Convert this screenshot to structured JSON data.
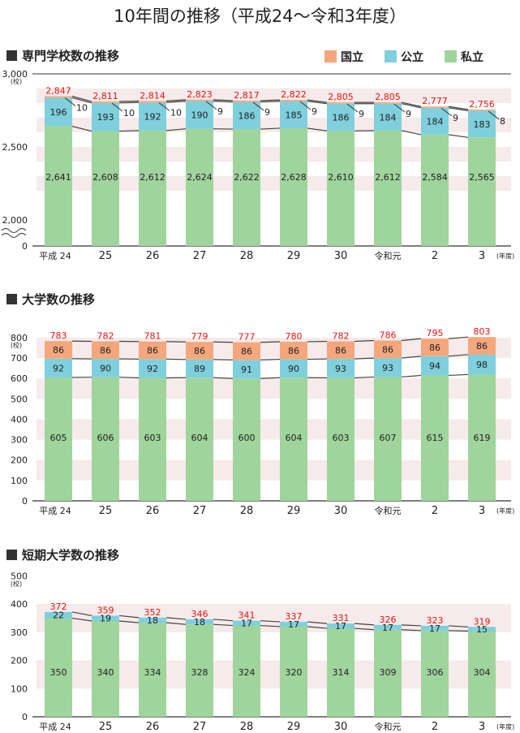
{
  "title": "10年間の推移（平成24〜令和3年度）",
  "legend": [
    {
      "label": "国立",
      "color": "#f4a77c"
    },
    {
      "label": "公立",
      "color": "#7fcfdd"
    },
    {
      "label": "私立",
      "color": "#9fd49c"
    }
  ],
  "colors": {
    "total_label": "#e8140f",
    "stripe": "#f6eaea"
  },
  "chart_data": [
    {
      "type": "bar",
      "stacked": true,
      "title": "専門学校数の推移",
      "unit": "(校)",
      "year_unit": "(年度)",
      "categories": [
        "平成 24",
        "25",
        "26",
        "27",
        "28",
        "29",
        "30",
        "令和元",
        "2",
        "3"
      ],
      "yticks": [
        "0",
        "2,000",
        "2,500",
        "3,000"
      ],
      "axis_break": "0〜2,000",
      "ylim": [
        0,
        3000
      ],
      "series": [
        {
          "name": "私立",
          "values": [
            2641,
            2608,
            2612,
            2624,
            2622,
            2628,
            2610,
            2612,
            2584,
            2565
          ],
          "labels": [
            "2,641",
            "2,608",
            "2,612",
            "2,624",
            "2,622",
            "2,628",
            "2,610",
            "2,612",
            "2,584",
            "2,565"
          ]
        },
        {
          "name": "公立",
          "values": [
            196,
            193,
            192,
            190,
            186,
            185,
            186,
            184,
            184,
            183
          ],
          "labels": [
            "196",
            "193",
            "192",
            "190",
            "186",
            "185",
            "186",
            "184",
            "184",
            "183"
          ]
        },
        {
          "name": "国立",
          "values": [
            10,
            10,
            10,
            9,
            9,
            9,
            9,
            9,
            9,
            8
          ],
          "labels": [
            "10",
            "10",
            "10",
            "9",
            "9",
            "9",
            "9",
            "9",
            "9",
            "8"
          ]
        }
      ],
      "totals": [
        "2,847",
        "2,811",
        "2,814",
        "2,823",
        "2,817",
        "2,822",
        "2,805",
        "2,805",
        "2,777",
        "2,756"
      ]
    },
    {
      "type": "bar",
      "stacked": true,
      "title": "大学数の推移",
      "unit": "(校)",
      "year_unit": "(年度)",
      "categories": [
        "平成 24",
        "25",
        "26",
        "27",
        "28",
        "29",
        "30",
        "令和元",
        "2",
        "3"
      ],
      "yticks": [
        "0",
        "100",
        "200",
        "300",
        "400",
        "500",
        "600",
        "700",
        "800"
      ],
      "ylim": [
        0,
        800
      ],
      "series": [
        {
          "name": "私立",
          "values": [
            605,
            606,
            603,
            604,
            600,
            604,
            603,
            607,
            615,
            619
          ],
          "labels": [
            "605",
            "606",
            "603",
            "604",
            "600",
            "604",
            "603",
            "607",
            "615",
            "619"
          ]
        },
        {
          "name": "公立",
          "values": [
            92,
            90,
            92,
            89,
            91,
            90,
            93,
            93,
            94,
            98
          ],
          "labels": [
            "92",
            "90",
            "92",
            "89",
            "91",
            "90",
            "93",
            "93",
            "94",
            "98"
          ]
        },
        {
          "name": "国立",
          "values": [
            86,
            86,
            86,
            86,
            86,
            86,
            86,
            86,
            86,
            86
          ],
          "labels": [
            "86",
            "86",
            "86",
            "86",
            "86",
            "86",
            "86",
            "86",
            "86",
            "86"
          ]
        }
      ],
      "totals": [
        "783",
        "782",
        "781",
        "779",
        "777",
        "780",
        "782",
        "786",
        "795",
        "803"
      ]
    },
    {
      "type": "bar",
      "stacked": true,
      "title": "短期大学数の推移",
      "unit": "(校)",
      "year_unit": "(年度)",
      "categories": [
        "平成 24",
        "25",
        "26",
        "27",
        "28",
        "29",
        "30",
        "令和元",
        "2",
        "3"
      ],
      "yticks": [
        "0",
        "100",
        "200",
        "300",
        "400",
        "500"
      ],
      "ylim": [
        0,
        500
      ],
      "series": [
        {
          "name": "私立",
          "values": [
            350,
            340,
            334,
            328,
            324,
            320,
            314,
            309,
            306,
            304
          ],
          "labels": [
            "350",
            "340",
            "334",
            "328",
            "324",
            "320",
            "314",
            "309",
            "306",
            "304"
          ]
        },
        {
          "name": "公立",
          "values": [
            22,
            19,
            18,
            18,
            17,
            17,
            17,
            17,
            17,
            15
          ],
          "labels": [
            "22",
            "19",
            "18",
            "18",
            "17",
            "17",
            "17",
            "17",
            "17",
            "15"
          ]
        }
      ],
      "totals": [
        "372",
        "359",
        "352",
        "346",
        "341",
        "337",
        "331",
        "326",
        "323",
        "319"
      ]
    }
  ]
}
